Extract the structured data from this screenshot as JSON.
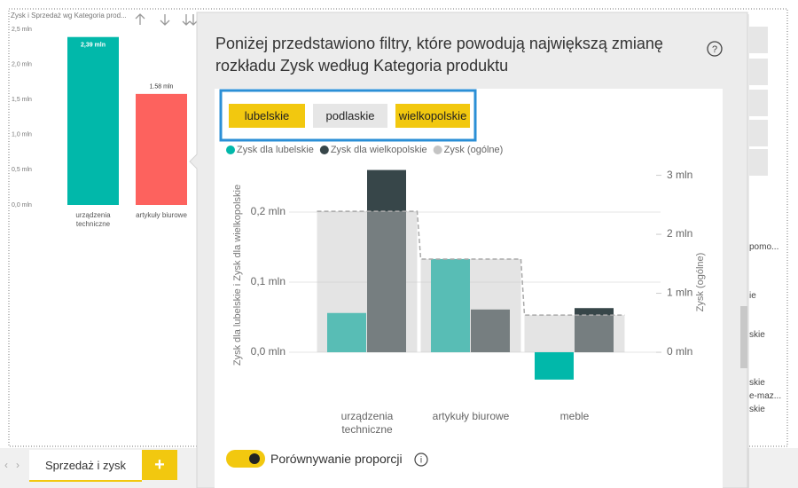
{
  "ui": {
    "popup_title": "Poniżej przedstawiono filtry, które powodują największą zmianę rozkładu Zysk według Kategoria produktu",
    "filters": [
      "lubelskie",
      "podlaskie",
      "wielkopolskie"
    ],
    "toggle_label": "Porównywanie proporcji",
    "tab": "Sprzedaż i zysk",
    "add_tab": "+",
    "side_texts": [
      "pomo...",
      "ie",
      "skie",
      "skie",
      "e-maz...",
      "skie"
    ]
  },
  "chart_data": [
    {
      "type": "bar",
      "title": "Zysk i Sprzedaż wg Kategoria prod...",
      "categories": [
        "urządzenia techniczne",
        "artykuły biurowe"
      ],
      "values": [
        2.39,
        1.58
      ],
      "value_labels": [
        "2,39 mln",
        "1.58 mln"
      ],
      "colors": [
        "#01b8aa",
        "#fd625e"
      ],
      "ylim": [
        0,
        2.5
      ],
      "yticks": [
        {
          "value": 0,
          "label": "0,0 mln"
        },
        {
          "value": 0.5,
          "label": "0,5 mln"
        },
        {
          "value": 1,
          "label": "1,0 mln"
        },
        {
          "value": 1.5,
          "label": "1,5 mln"
        },
        {
          "value": 2,
          "label": "2,0 mln"
        },
        {
          "value": 2.5,
          "label": "2,5 mln"
        }
      ]
    },
    {
      "type": "combo",
      "categories": [
        "urządzenia techniczne",
        "artykuły biurowe",
        "meble"
      ],
      "series": [
        {
          "name": "Zysk dla lubelskie",
          "color": "#01b8aa",
          "values": [
            0.056,
            0.133,
            -0.039
          ]
        },
        {
          "name": "Zysk dla wielkopolskie",
          "color": "#374649",
          "values": [
            0.26,
            0.061,
            0.063
          ]
        },
        {
          "name": "Zysk (ogólne)",
          "color": "#c4c4c4",
          "axis": "y2",
          "values": [
            2.39,
            1.58,
            0.63
          ]
        }
      ],
      "ylabel": "Zysk dla lubelskie i Zysk dla wielkopolskie",
      "y2label": "Zysk (ogólne)",
      "ylim": [
        -0.04,
        0.26
      ],
      "yticks": [
        {
          "value": 0,
          "label": "0,0 mln"
        },
        {
          "value": 0.1,
          "label": "0,1 mln"
        },
        {
          "value": 0.2,
          "label": "0,2 mln"
        }
      ],
      "y2lim": [
        -0.475,
        3.09
      ],
      "y2ticks": [
        {
          "value": 0,
          "label": "0 mln"
        },
        {
          "value": 1,
          "label": "1 mln"
        },
        {
          "value": 2,
          "label": "2 mln"
        },
        {
          "value": 3,
          "label": "3 mln"
        }
      ],
      "grid": true
    }
  ]
}
